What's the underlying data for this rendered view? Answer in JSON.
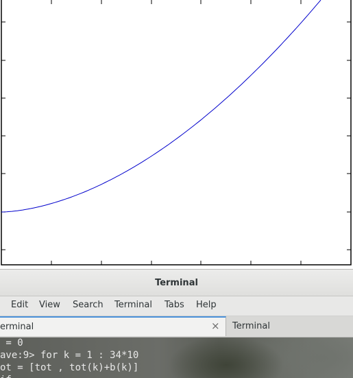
{
  "plot": {
    "line_color": "#0000cc",
    "axis_color": "#000000"
  },
  "terminal_window": {
    "title": "Terminal",
    "menu": [
      "Edit",
      "View",
      "Search",
      "Terminal",
      "Tabs",
      "Help"
    ],
    "tabs": [
      {
        "label": "erminal",
        "active": true
      },
      {
        "label": "Terminal",
        "active": false
      }
    ],
    "close_glyph": "×",
    "console_lines": [
      " = 0",
      "ave:9> for k = 1 : 34*10",
      "ot = [tot , tot(k)+b(k)]",
      "if"
    ]
  },
  "colors": {
    "tab_accent": "#4a90d9",
    "window_bg": "#e8e8e7",
    "console_text": "#e8e8e8"
  }
}
